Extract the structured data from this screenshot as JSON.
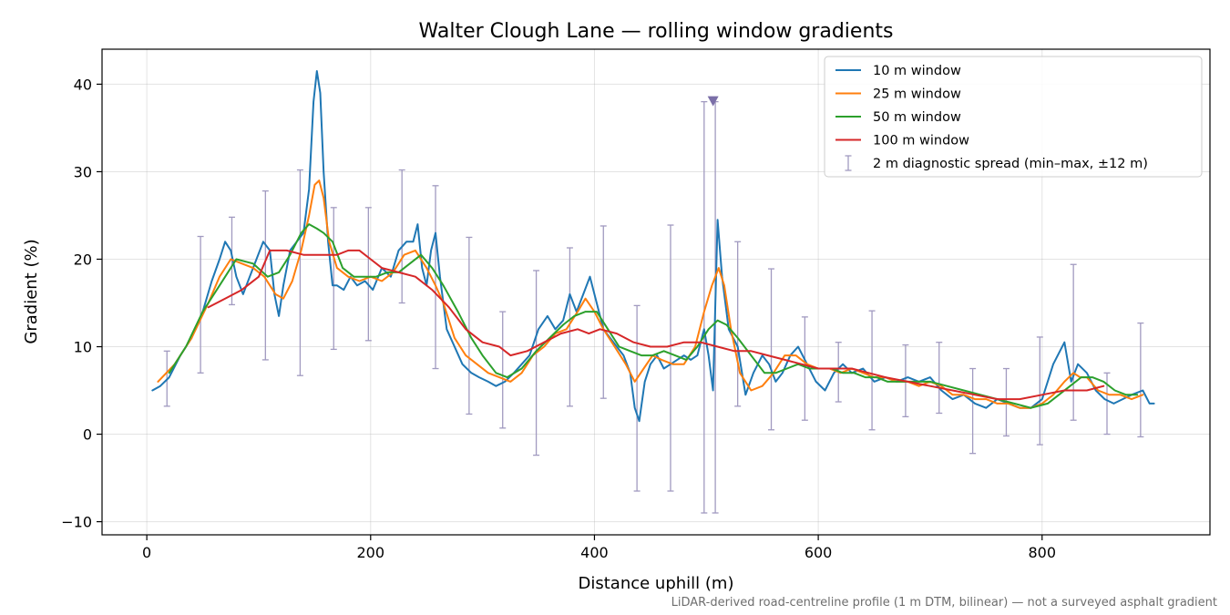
{
  "chart_data": {
    "type": "line",
    "title": "Walter Clough Lane — rolling window gradients",
    "xlabel": "Distance uphill (m)",
    "ylabel": "Gradient (%)",
    "xlim": [
      -40,
      950
    ],
    "ylim": [
      -11.5,
      44
    ],
    "xticks": [
      0,
      200,
      400,
      600,
      800
    ],
    "xtick_labels": [
      "0",
      "200",
      "400",
      "600",
      "800"
    ],
    "yticks": [
      -10,
      0,
      10,
      20,
      30,
      40
    ],
    "ytick_labels": [
      "−10",
      "0",
      "10",
      "20",
      "30",
      "40"
    ],
    "grid": true,
    "legend_position": "top-right",
    "footnote": "LiDAR-derived road-centreline profile (1 m DTM, bilinear) — not a surveyed asphalt gradient",
    "series": [
      {
        "name": "10 m window",
        "color": "#1f77b4",
        "x": [
          5,
          12,
          20,
          30,
          40,
          50,
          58,
          65,
          70,
          75,
          80,
          86,
          92,
          98,
          104,
          110,
          114,
          118,
          122,
          128,
          134,
          140,
          145,
          149,
          152,
          155,
          158,
          162,
          166,
          170,
          176,
          182,
          188,
          195,
          202,
          210,
          218,
          225,
          232,
          238,
          242,
          246,
          250,
          254,
          258,
          262,
          268,
          275,
          282,
          290,
          297,
          305,
          312,
          320,
          328,
          335,
          342,
          350,
          358,
          365,
          372,
          378,
          384,
          390,
          396,
          402,
          408,
          414,
          420,
          426,
          432,
          436,
          440,
          445,
          450,
          456,
          462,
          468,
          474,
          480,
          486,
          492,
          498,
          502,
          506,
          510,
          514,
          520,
          528,
          535,
          542,
          550,
          556,
          562,
          568,
          575,
          582,
          590,
          598,
          606,
          614,
          622,
          630,
          640,
          650,
          660,
          670,
          680,
          690,
          700,
          710,
          720,
          730,
          740,
          750,
          760,
          770,
          780,
          790,
          800,
          810,
          820,
          826,
          832,
          840,
          848,
          856,
          864,
          872,
          880,
          890,
          896,
          900
        ],
        "y": [
          5,
          5.5,
          6.5,
          9,
          11,
          14,
          17.5,
          20,
          22,
          21,
          18,
          16,
          18,
          20,
          22,
          21,
          16,
          13.5,
          17,
          21,
          22,
          23,
          28,
          38,
          41.5,
          39,
          30,
          22,
          17,
          17,
          16.5,
          18,
          17,
          17.5,
          16.5,
          19,
          18,
          21,
          22,
          22,
          24,
          19,
          17,
          21,
          23,
          18,
          12,
          10,
          8,
          7,
          6.5,
          6,
          5.5,
          6,
          7,
          8,
          9,
          12,
          13.5,
          12,
          13,
          16,
          14,
          16,
          18,
          15,
          12,
          11,
          10,
          9,
          7,
          3,
          1.5,
          6,
          8,
          9,
          7.5,
          8,
          8.5,
          9,
          8.5,
          9,
          12,
          9,
          5,
          24.5,
          18,
          12,
          10,
          4.5,
          7,
          9,
          8,
          6,
          7,
          9,
          10,
          8,
          6,
          5,
          7,
          8,
          7,
          7.5,
          6,
          6.5,
          6,
          6.5,
          6,
          6.5,
          5,
          4,
          4.5,
          3.5,
          3,
          4,
          3.5,
          3,
          3,
          4,
          8,
          10.5,
          6,
          8,
          7,
          5,
          4,
          3.5,
          4,
          4.5,
          5,
          3.5,
          3.5
        ]
      },
      {
        "name": "25 m window",
        "color": "#ff7f0e",
        "x": [
          10,
          25,
          40,
          55,
          65,
          75,
          85,
          95,
          105,
          115,
          122,
          130,
          138,
          145,
          150,
          154,
          158,
          163,
          170,
          180,
          190,
          200,
          210,
          220,
          230,
          240,
          250,
          258,
          265,
          275,
          285,
          295,
          305,
          315,
          325,
          335,
          345,
          355,
          365,
          375,
          385,
          392,
          400,
          408,
          418,
          428,
          436,
          444,
          452,
          460,
          470,
          480,
          490,
          498,
          505,
          511,
          516,
          522,
          530,
          540,
          550,
          560,
          570,
          580,
          590,
          600,
          610,
          620,
          630,
          640,
          650,
          660,
          670,
          680,
          690,
          700,
          710,
          720,
          730,
          740,
          750,
          760,
          770,
          780,
          790,
          800,
          810,
          820,
          828,
          834,
          840,
          850,
          860,
          870,
          880,
          890
        ],
        "y": [
          6,
          8,
          11,
          15,
          18,
          20,
          19.5,
          19,
          18,
          16,
          15.5,
          17.5,
          21,
          25,
          28.5,
          29,
          27,
          22,
          19,
          18,
          17.5,
          18,
          17.5,
          18.5,
          20.5,
          21,
          19,
          17,
          15,
          11,
          9,
          8,
          7,
          6.5,
          6,
          7,
          9,
          10,
          11.5,
          12,
          14,
          15.5,
          14,
          12,
          10,
          8,
          6,
          7.5,
          9,
          8.5,
          8,
          8,
          10,
          14,
          17,
          19,
          17,
          12,
          7,
          5,
          5.5,
          7,
          9,
          9,
          8,
          7.5,
          7.5,
          7,
          7.5,
          7,
          6.5,
          6.5,
          6,
          6,
          5.5,
          6,
          5.5,
          4.5,
          4.5,
          4,
          4,
          3.5,
          3.5,
          3,
          3,
          3.5,
          4.5,
          6,
          7,
          6.5,
          6.5,
          5,
          4.5,
          4.5,
          4,
          4.5
        ]
      },
      {
        "name": "50 m window",
        "color": "#2ca02c",
        "x": [
          20,
          35,
          50,
          65,
          80,
          95,
          108,
          118,
          128,
          138,
          145,
          152,
          158,
          166,
          175,
          185,
          195,
          205,
          215,
          225,
          235,
          245,
          255,
          265,
          278,
          290,
          300,
          312,
          322,
          335,
          348,
          360,
          372,
          382,
          392,
          402,
          412,
          422,
          432,
          442,
          452,
          462,
          472,
          482,
          492,
          502,
          510,
          518,
          528,
          540,
          552,
          562,
          572,
          582,
          592,
          602,
          612,
          622,
          632,
          642,
          652,
          662,
          672,
          685,
          700,
          715,
          730,
          745,
          760,
          775,
          790,
          805,
          815,
          825,
          835,
          845,
          855,
          865,
          875,
          885
        ],
        "y": [
          7,
          10,
          14,
          17,
          20,
          19.5,
          18,
          18.5,
          20.5,
          23,
          24,
          23.5,
          23,
          22,
          19,
          18,
          18,
          18,
          18.5,
          18.5,
          19.5,
          20.5,
          19,
          17,
          14,
          11,
          9,
          7,
          6.5,
          7.5,
          9.5,
          11,
          12.5,
          13.5,
          14,
          14,
          12,
          10,
          9.5,
          9,
          9,
          9.5,
          9,
          8.5,
          10,
          12,
          13,
          12.5,
          11,
          9,
          7,
          7,
          7.5,
          8,
          7.5,
          7.5,
          7.5,
          7,
          7,
          6.5,
          6.5,
          6,
          6,
          6,
          6,
          5.5,
          5,
          4.5,
          4,
          3.5,
          3,
          3.5,
          4.5,
          5.5,
          6.5,
          6.5,
          6,
          5,
          4.5,
          4.5
        ]
      },
      {
        "name": "100 m window",
        "color": "#d62728",
        "x": [
          55,
          70,
          85,
          100,
          110,
          125,
          140,
          155,
          170,
          180,
          190,
          200,
          210,
          225,
          240,
          255,
          270,
          285,
          300,
          315,
          325,
          340,
          355,
          370,
          385,
          395,
          405,
          420,
          435,
          450,
          465,
          480,
          495,
          510,
          525,
          540,
          555,
          570,
          585,
          600,
          615,
          630,
          645,
          660,
          680,
          700,
          720,
          740,
          760,
          780,
          800,
          820,
          840,
          855
        ],
        "y": [
          14.5,
          15.5,
          16.5,
          18,
          21,
          21,
          20.5,
          20.5,
          20.5,
          21,
          21,
          20,
          19,
          18.5,
          18,
          16.5,
          14.5,
          12,
          10.5,
          10,
          9,
          9.5,
          10.5,
          11.5,
          12,
          11.5,
          12,
          11.5,
          10.5,
          10,
          10,
          10.5,
          10.5,
          10,
          9.5,
          9.5,
          9,
          8.5,
          8,
          7.5,
          7.5,
          7.5,
          7,
          6.5,
          6,
          5.5,
          5,
          4.5,
          4,
          4,
          4.5,
          5,
          5,
          5.5
        ]
      },
      {
        "name": "2 m diagnostic spread (min–max, ±12 m)",
        "color": "#a19ac0",
        "kind": "errorbar",
        "x": [
          18,
          48,
          76,
          106,
          137,
          167,
          198,
          228,
          258,
          288,
          318,
          348,
          378,
          408,
          438,
          468,
          498,
          508,
          528,
          558,
          588,
          618,
          648,
          678,
          708,
          738,
          768,
          798,
          828,
          858,
          888
        ],
        "ymin": [
          3.2,
          7,
          14.8,
          8.5,
          6.7,
          9.7,
          10.7,
          15,
          7.5,
          2.3,
          0.7,
          -2.4,
          3.2,
          4.1,
          -6.5,
          -6.5,
          -9,
          -9,
          3.2,
          0.5,
          1.6,
          3.7,
          0.5,
          2,
          2.4,
          -2.2,
          -0.2,
          -1.2,
          1.6,
          0,
          -0.3
        ],
        "ymax": [
          9.5,
          22.6,
          24.8,
          27.8,
          30.2,
          25.9,
          25.9,
          30.2,
          28.4,
          22.5,
          14,
          18.7,
          21.3,
          23.8,
          14.7,
          23.9,
          38,
          38,
          22,
          18.9,
          13.4,
          10.5,
          14.1,
          10.2,
          10.5,
          7.5,
          7.5,
          11.1,
          19.4,
          7,
          12.7
        ],
        "clipped_marker": {
          "x": 506,
          "y": 38
        }
      }
    ]
  }
}
